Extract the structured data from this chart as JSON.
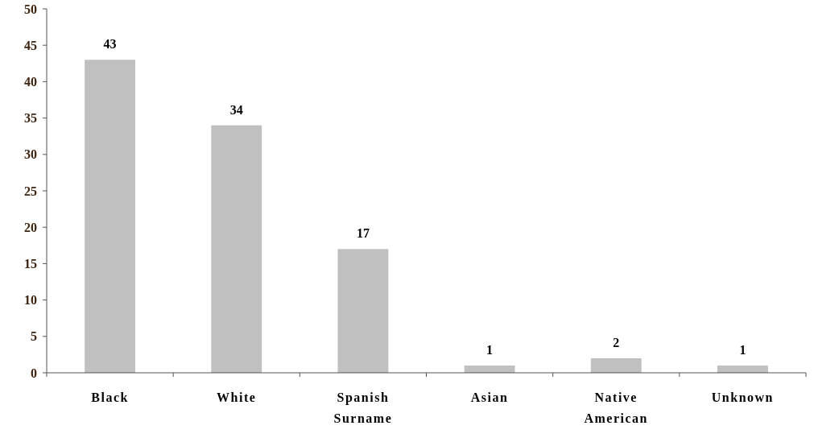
{
  "chart_data": {
    "type": "bar",
    "categories": [
      "Black",
      "White",
      "Spanish Surname",
      "Asian",
      "Native American",
      "Unknown"
    ],
    "values": [
      43,
      34,
      17,
      1,
      2,
      1
    ],
    "color": "#c0c0c0",
    "ylim": [
      0,
      50
    ],
    "yticks": [
      0,
      5,
      10,
      15,
      20,
      25,
      30,
      35,
      40,
      45,
      50
    ],
    "data_labels": true,
    "grid": false
  }
}
